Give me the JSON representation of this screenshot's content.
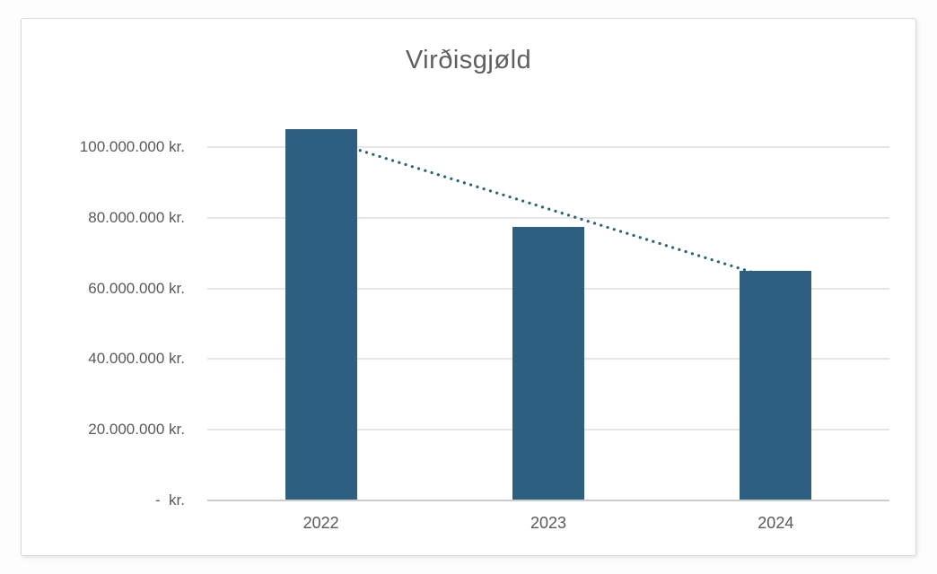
{
  "chart_data": {
    "type": "bar",
    "title": "Virðisgjøld",
    "categories": [
      "2022",
      "2023",
      "2024"
    ],
    "values": [
      105000000,
      77500000,
      65000000
    ],
    "value_unit": "kr.",
    "y_ticks": [
      {
        "value": 100000000,
        "label": "100.000.000 kr."
      },
      {
        "value": 80000000,
        "label": "80.000.000 kr."
      },
      {
        "value": 60000000,
        "label": "60.000.000 kr."
      },
      {
        "value": 40000000,
        "label": "40.000.000 kr."
      },
      {
        "value": 20000000,
        "label": "20.000.000 kr."
      },
      {
        "value": 0,
        "label": "-  kr."
      }
    ],
    "ylim": [
      0,
      110000000
    ],
    "grid": true,
    "legend": false,
    "trendline": {
      "type": "linear",
      "style": "dotted"
    },
    "colors": {
      "bar": "#2d5f80",
      "trendline": "#2b6472",
      "gridline": "#e6e6e6",
      "axis_line": "#cccccc",
      "title_text": "#5f5f5f",
      "axis_text": "#595959",
      "frame_border": "#d9d9d9",
      "background": "#ffffff"
    }
  }
}
